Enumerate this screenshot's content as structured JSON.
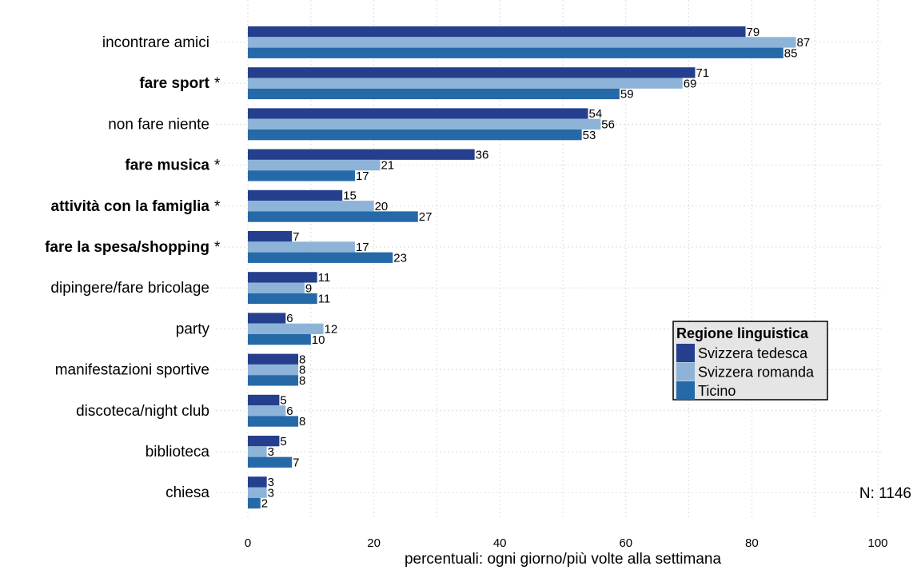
{
  "chart_data": {
    "type": "bar",
    "orientation": "horizontal",
    "categories": [
      {
        "label": "incontrare amici",
        "bold": false
      },
      {
        "label": "fare sport",
        "bold": true
      },
      {
        "label": "non fare niente",
        "bold": false
      },
      {
        "label": "fare musica",
        "bold": true
      },
      {
        "label": "attività con la famiglia",
        "bold": true
      },
      {
        "label": "fare la spesa/shopping",
        "bold": true
      },
      {
        "label": "dipingere/fare bricolage",
        "bold": false
      },
      {
        "label": "party",
        "bold": false
      },
      {
        "label": "manifestazioni sportive",
        "bold": false
      },
      {
        "label": "discoteca/night club",
        "bold": false
      },
      {
        "label": "biblioteca",
        "bold": false
      },
      {
        "label": "chiesa",
        "bold": false
      }
    ],
    "significance_marker": "*",
    "series": [
      {
        "name": "Svizzera tedesca",
        "color": "#253f8e",
        "values": [
          79,
          71,
          54,
          36,
          15,
          7,
          11,
          6,
          8,
          5,
          5,
          3
        ]
      },
      {
        "name": "Svizzera romanda",
        "color": "#8db4d8",
        "values": [
          87,
          69,
          56,
          21,
          20,
          17,
          9,
          12,
          8,
          6,
          3,
          3
        ]
      },
      {
        "name": "Ticino",
        "color": "#2669a8",
        "values": [
          85,
          59,
          53,
          17,
          27,
          23,
          11,
          10,
          8,
          8,
          7,
          2
        ]
      }
    ],
    "xlim": [
      0,
      100
    ],
    "xticks": [
      0,
      20,
      40,
      60,
      80,
      100
    ],
    "xlabel": "percentuali: ogni giorno/più volte alla settimana",
    "legend": {
      "title": "Regione linguistica",
      "placement": "right-middle"
    },
    "annotation": "N: 1146",
    "grid": true
  }
}
